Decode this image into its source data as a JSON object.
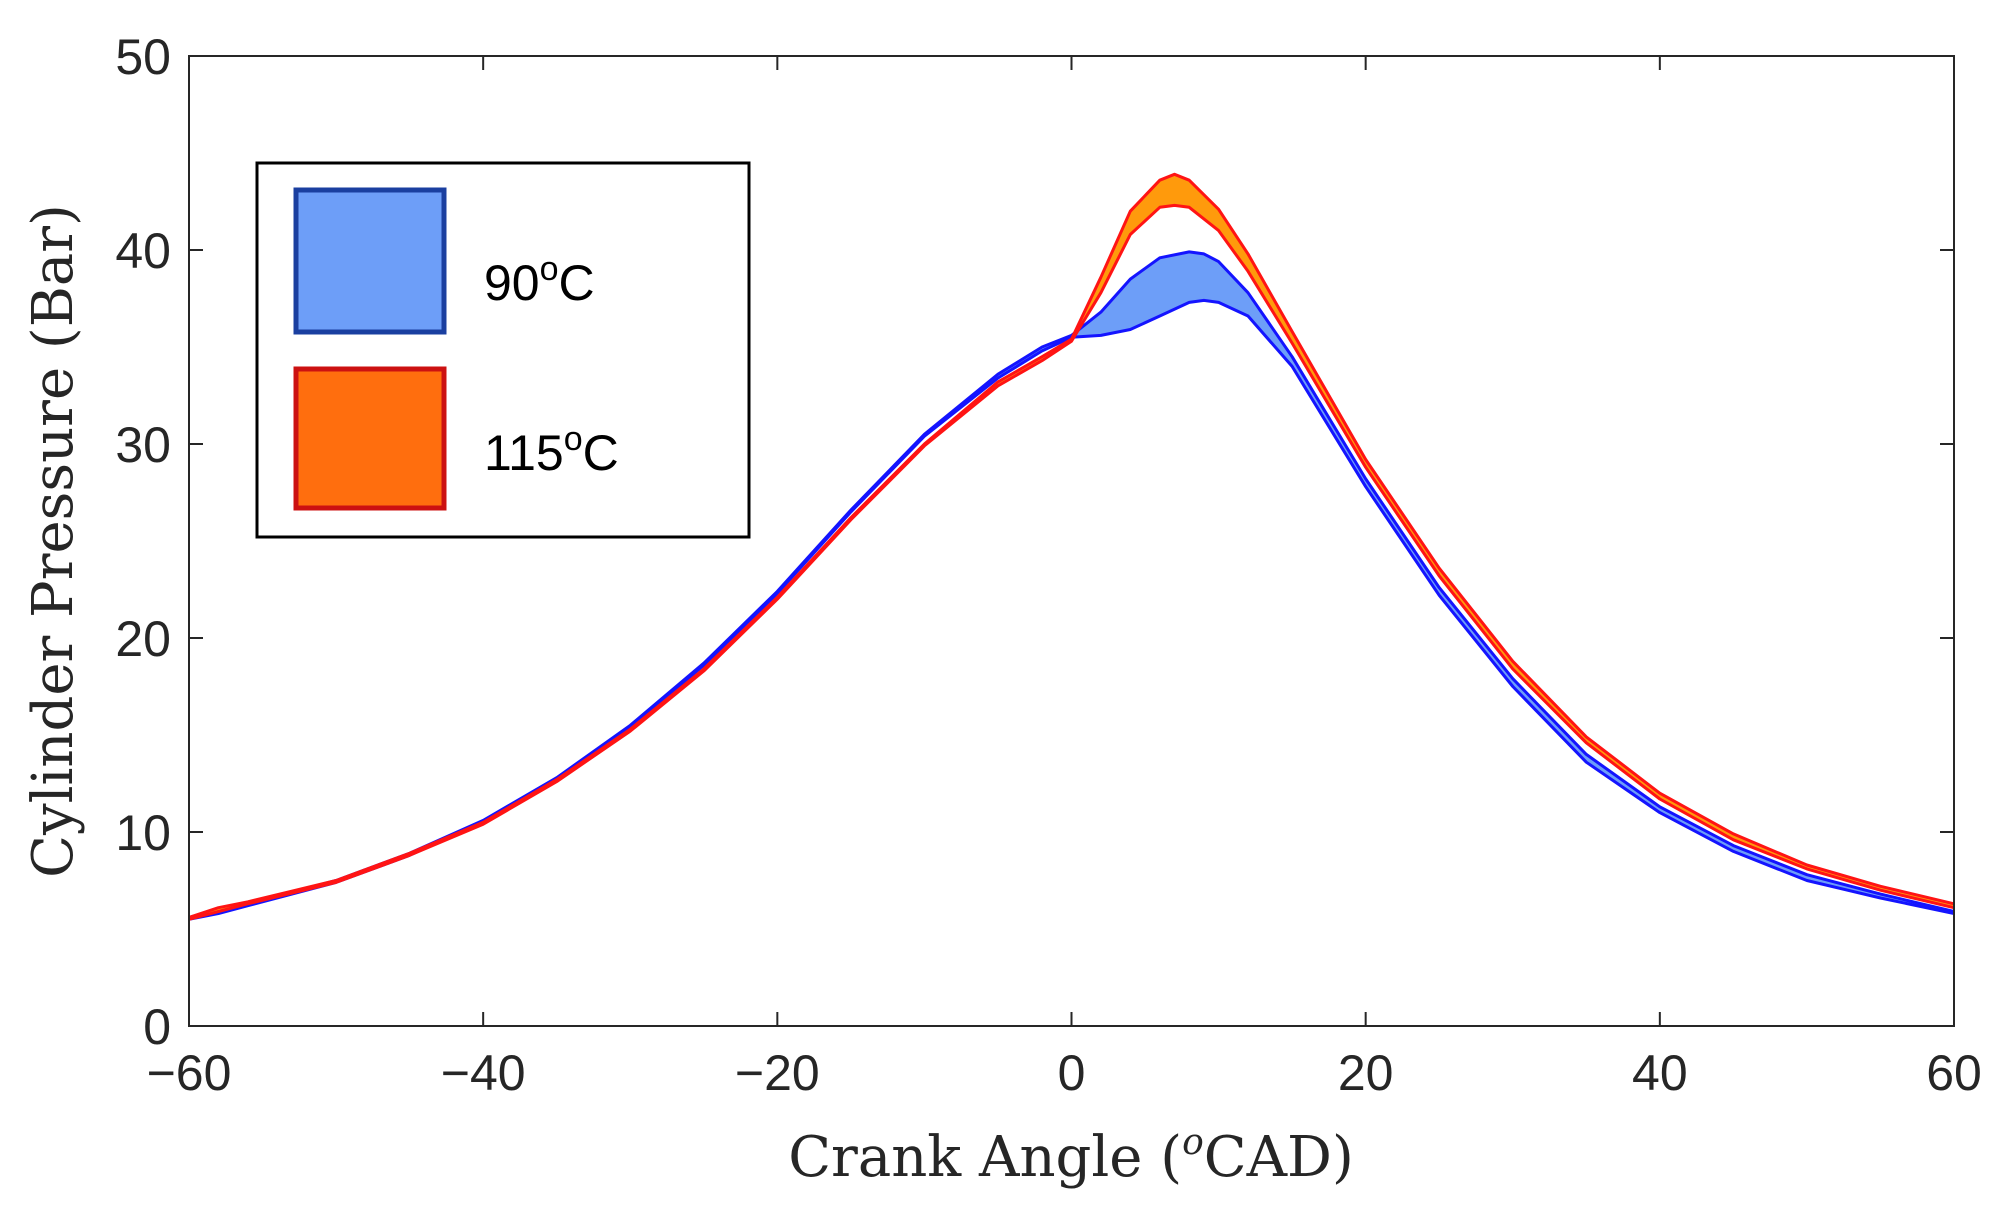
{
  "chart_data": {
    "type": "area",
    "title": "",
    "xlabel": "Crank Angle (",
    "xlabel_sup": "o",
    "xlabel_rest": "CAD)",
    "ylabel": "Cylinder Pressure (Bar)",
    "xlim": [
      -60,
      60
    ],
    "ylim": [
      0,
      50
    ],
    "xticks": [
      -60,
      -40,
      -20,
      0,
      20,
      40,
      60
    ],
    "yticks": [
      0,
      10,
      20,
      30,
      40,
      50
    ],
    "xtick_labels": [
      "−60",
      "−40",
      "−20",
      "0",
      "20",
      "40",
      "60"
    ],
    "ytick_labels": [
      "0",
      "10",
      "20",
      "30",
      "40",
      "50"
    ],
    "grid": false,
    "legend_position": "top-left",
    "legend": [
      {
        "label": "90",
        "sup": "o",
        "suffix": "C",
        "fill": "#6d9ef8",
        "edge": "#1a3fa0"
      },
      {
        "label": "115",
        "sup": "o",
        "suffix": "C",
        "fill": "#ff6e0e",
        "edge": "#cc1111"
      }
    ],
    "series": [
      {
        "name": "90°C",
        "line_color": "#1414ff",
        "fill_color": "#6d9ef8",
        "x": [
          -60,
          -58,
          -56,
          -50,
          -45,
          -40,
          -35,
          -30,
          -25,
          -20,
          -15,
          -10,
          -5,
          -2,
          0,
          2,
          4,
          6,
          8,
          9,
          10,
          12,
          15,
          20,
          25,
          30,
          35,
          40,
          45,
          50,
          55,
          60
        ],
        "upper": [
          5.6,
          6.0,
          6.3,
          7.5,
          8.9,
          10.6,
          12.8,
          15.5,
          18.7,
          22.4,
          26.6,
          30.5,
          33.6,
          35.0,
          35.6,
          36.8,
          38.5,
          39.6,
          39.9,
          39.8,
          39.4,
          37.8,
          34.5,
          28.2,
          22.6,
          17.9,
          14.0,
          11.3,
          9.3,
          7.8,
          6.8,
          5.9
        ],
        "lower": [
          5.5,
          5.8,
          6.2,
          7.4,
          8.8,
          10.5,
          12.7,
          15.4,
          18.6,
          22.3,
          26.5,
          30.4,
          33.4,
          34.8,
          35.5,
          35.6,
          35.9,
          36.6,
          37.3,
          37.4,
          37.3,
          36.6,
          34.0,
          27.8,
          22.2,
          17.5,
          13.6,
          11.0,
          9.0,
          7.5,
          6.6,
          5.8
        ]
      },
      {
        "name": "115°C",
        "line_color": "#ff1414",
        "fill_color": "#ff9a0c",
        "x": [
          -60,
          -58,
          -56,
          -50,
          -45,
          -40,
          -35,
          -30,
          -25,
          -20,
          -15,
          -10,
          -5,
          -2,
          0,
          2,
          4,
          6,
          7,
          8,
          10,
          12,
          15,
          20,
          25,
          30,
          35,
          40,
          45,
          50,
          55,
          60
        ],
        "upper": [
          5.6,
          6.1,
          6.4,
          7.5,
          8.9,
          10.5,
          12.7,
          15.3,
          18.4,
          22.1,
          26.2,
          30.0,
          33.2,
          34.5,
          35.4,
          38.6,
          42.0,
          43.6,
          43.9,
          43.6,
          42.1,
          39.8,
          35.8,
          29.2,
          23.6,
          18.8,
          14.9,
          12.0,
          9.9,
          8.3,
          7.2,
          6.3
        ],
        "lower": [
          5.5,
          5.9,
          6.3,
          7.4,
          8.8,
          10.4,
          12.6,
          15.2,
          18.3,
          22.0,
          26.1,
          29.9,
          33.0,
          34.3,
          35.3,
          37.8,
          40.8,
          42.2,
          42.3,
          42.2,
          41.0,
          38.9,
          35.2,
          28.8,
          23.2,
          18.4,
          14.6,
          11.7,
          9.6,
          8.1,
          7.0,
          6.1
        ]
      }
    ]
  }
}
